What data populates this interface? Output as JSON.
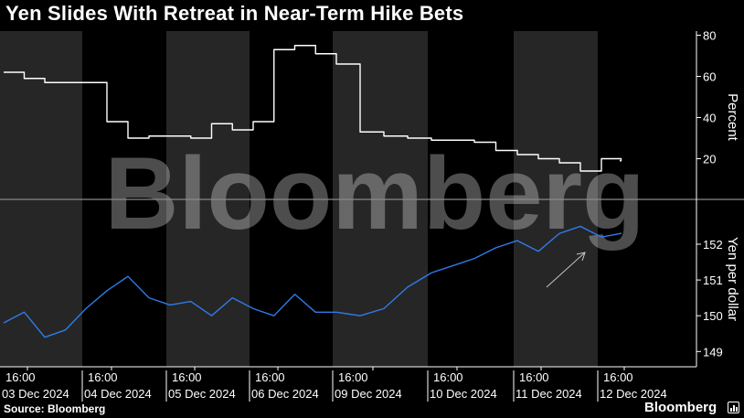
{
  "title": "Yen Slides With Retreat in Near-Term Hike Bets",
  "source": "Source: Bloomberg",
  "brand": "Bloomberg",
  "watermark": "Bloomberg",
  "colors": {
    "background": "#000000",
    "shade": "#262626",
    "percent_line": "#ffffff",
    "yen_line": "#2f7bea",
    "arrow": "#c8c8c8"
  },
  "chart_data": [
    {
      "type": "line",
      "ylabel": "Percent",
      "ylim": [
        2,
        82
      ],
      "yticks": [
        20,
        40,
        60,
        80
      ],
      "grid": false,
      "x_tick_labels": [
        {
          "time": "16:00",
          "date": "03 Dec 2024"
        },
        {
          "time": "16:00",
          "date": "04 Dec 2024"
        },
        {
          "time": "16:00",
          "date": "05 Dec 2024"
        },
        {
          "time": "16:00",
          "date": "06 Dec 2024"
        },
        {
          "time": "16:00",
          "date": "09 Dec 2024"
        },
        {
          "time": "16:00",
          "date": "10 Dec 2024"
        },
        {
          "time": "16:00",
          "date": "11 Dec 2024"
        },
        {
          "time": "16:00",
          "date": "12 Dec 2024"
        }
      ],
      "x": [
        "03 Dec 00:00",
        "03 Dec 06:00",
        "03 Dec 12:00",
        "03 Dec 18:00",
        "04 Dec 00:00",
        "04 Dec 06:00",
        "04 Dec 12:00",
        "04 Dec 18:00",
        "05 Dec 00:00",
        "05 Dec 06:00",
        "05 Dec 12:00",
        "05 Dec 18:00",
        "06 Dec 00:00",
        "06 Dec 06:00",
        "06 Dec 12:00",
        "06 Dec 18:00",
        "09 Dec 00:00",
        "09 Dec 06:00",
        "09 Dec 12:00",
        "09 Dec 18:00",
        "10 Dec 00:00",
        "10 Dec 06:00",
        "10 Dec 12:00",
        "10 Dec 18:00",
        "11 Dec 00:00",
        "11 Dec 06:00",
        "11 Dec 12:00",
        "11 Dec 18:00",
        "12 Dec 00:00",
        "12 Dec 06:00"
      ],
      "series": [
        {
          "values": [
            62,
            59,
            57,
            57,
            57,
            38,
            30,
            31,
            31,
            30,
            37,
            34,
            38,
            73,
            75,
            71,
            66,
            33,
            31,
            30,
            29,
            29,
            28,
            24,
            22,
            20,
            18,
            14,
            20,
            19
          ]
        }
      ]
    },
    {
      "type": "line",
      "ylabel": "Yen per dollar",
      "ylim": [
        148.65,
        153.15
      ],
      "yticks": [
        149,
        150,
        151,
        152
      ],
      "grid": false,
      "x": [
        "03 Dec 00:00",
        "03 Dec 06:00",
        "03 Dec 12:00",
        "03 Dec 18:00",
        "04 Dec 00:00",
        "04 Dec 06:00",
        "04 Dec 12:00",
        "04 Dec 18:00",
        "05 Dec 00:00",
        "05 Dec 06:00",
        "05 Dec 12:00",
        "05 Dec 18:00",
        "06 Dec 00:00",
        "06 Dec 06:00",
        "06 Dec 12:00",
        "06 Dec 18:00",
        "09 Dec 00:00",
        "09 Dec 06:00",
        "09 Dec 12:00",
        "09 Dec 18:00",
        "10 Dec 00:00",
        "10 Dec 06:00",
        "10 Dec 12:00",
        "10 Dec 18:00",
        "11 Dec 00:00",
        "11 Dec 06:00",
        "11 Dec 12:00",
        "11 Dec 18:00",
        "12 Dec 00:00",
        "12 Dec 06:00"
      ],
      "series": [
        {
          "values": [
            149.8,
            150.1,
            149.4,
            149.6,
            150.2,
            150.7,
            151.1,
            150.5,
            150.3,
            150.4,
            150.0,
            150.5,
            150.2,
            150.0,
            150.6,
            150.1,
            150.1,
            150.0,
            150.2,
            150.8,
            151.2,
            151.4,
            151.6,
            151.9,
            152.1,
            151.8,
            152.3,
            152.5,
            152.2,
            152.3
          ]
        }
      ]
    }
  ]
}
